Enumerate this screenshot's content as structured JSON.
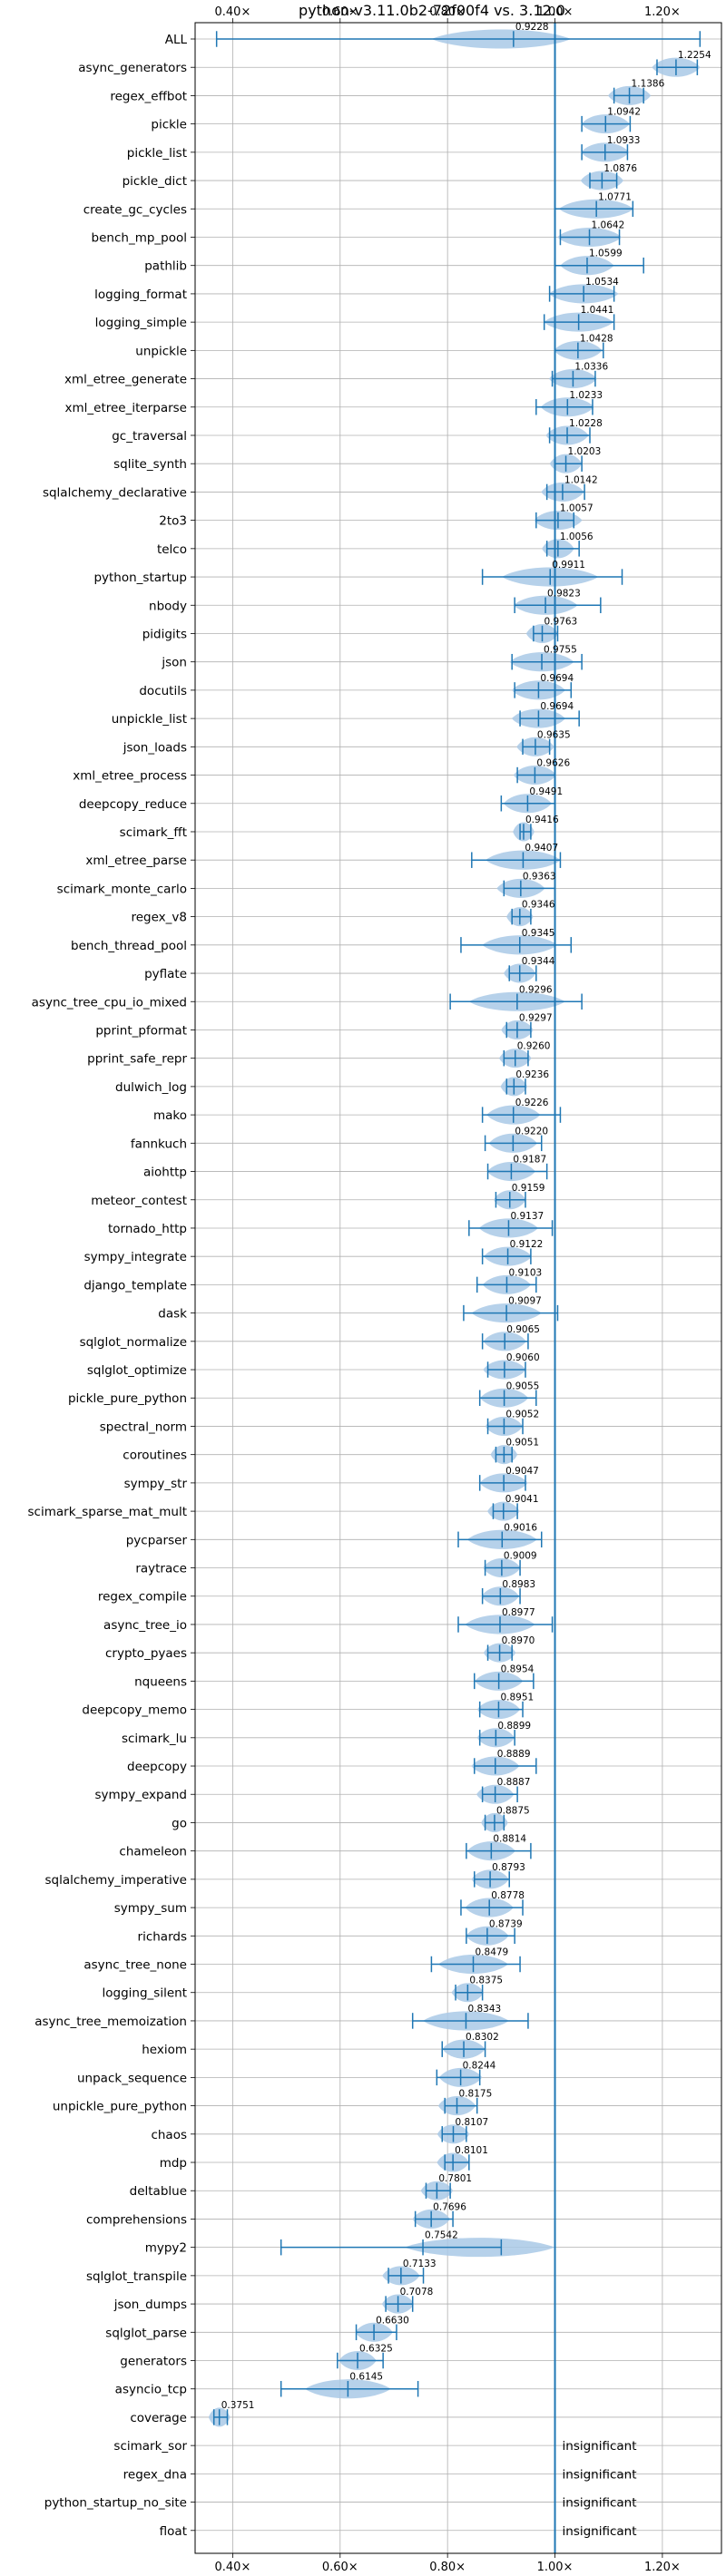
{
  "chart_data": {
    "type": "violin",
    "title": "python-v3.11.0b2-72f00f4 vs. 3.12.0",
    "xlabel": "",
    "ylabel": "",
    "xlim": [
      0.33,
      1.31
    ],
    "xticks": [
      0.4,
      0.6,
      0.8,
      1.0,
      1.2
    ],
    "xtick_labels": [
      "0.40×",
      "0.60×",
      "0.80×",
      "1.00×",
      "1.20×"
    ],
    "reference_line": 1.0,
    "grid": true,
    "colors": {
      "violin": "#a9c9e6",
      "whisker": "#1f77b4",
      "reference": "#1f77b4",
      "grid": "#b0b0b0"
    },
    "insignificant_text": "insignificant",
    "benchmarks": [
      {
        "name": "ALL",
        "label": "0.9228",
        "value": 0.9228,
        "min": 0.37,
        "max": 1.27,
        "width": 0.13,
        "vpeak": 0.9
      },
      {
        "name": "async_generators",
        "label": "1.2254",
        "value": 1.2254,
        "min": 1.19,
        "max": 1.265,
        "width": 0.045
      },
      {
        "name": "regex_effbot",
        "label": "1.1386",
        "value": 1.1386,
        "min": 1.11,
        "max": 1.165,
        "width": 0.04
      },
      {
        "name": "pickle",
        "label": "1.0942",
        "value": 1.0942,
        "min": 1.05,
        "max": 1.14,
        "width": 0.045
      },
      {
        "name": "pickle_list",
        "label": "1.0933",
        "value": 1.0933,
        "min": 1.05,
        "max": 1.135,
        "width": 0.045
      },
      {
        "name": "pickle_dict",
        "label": "1.0876",
        "value": 1.0876,
        "min": 1.065,
        "max": 1.115,
        "width": 0.04
      },
      {
        "name": "create_gc_cycles",
        "label": "1.0771",
        "value": 1.0771,
        "min": 1.0,
        "max": 1.145,
        "width": 0.07
      },
      {
        "name": "bench_mp_pool",
        "label": "1.0642",
        "value": 1.0642,
        "min": 1.01,
        "max": 1.12,
        "width": 0.06
      },
      {
        "name": "pathlib",
        "label": "1.0599",
        "value": 1.0599,
        "min": 1.0,
        "max": 1.165,
        "width": 0.05
      },
      {
        "name": "logging_format",
        "label": "1.0534",
        "value": 1.0534,
        "min": 0.99,
        "max": 1.11,
        "width": 0.065
      },
      {
        "name": "logging_simple",
        "label": "1.0441",
        "value": 1.0441,
        "min": 0.98,
        "max": 1.11,
        "width": 0.065
      },
      {
        "name": "unpickle",
        "label": "1.0428",
        "value": 1.0428,
        "min": 1.0,
        "max": 1.09,
        "width": 0.045
      },
      {
        "name": "xml_etree_generate",
        "label": "1.0336",
        "value": 1.0336,
        "min": 0.995,
        "max": 1.075,
        "width": 0.045
      },
      {
        "name": "xml_etree_iterparse",
        "label": "1.0233",
        "value": 1.0233,
        "min": 0.965,
        "max": 1.07,
        "width": 0.05
      },
      {
        "name": "gc_traversal",
        "label": "1.0228",
        "value": 1.0228,
        "min": 0.99,
        "max": 1.065,
        "width": 0.04
      },
      {
        "name": "sqlite_synth",
        "label": "1.0203",
        "value": 1.0203,
        "min": 1.0,
        "max": 1.05,
        "width": 0.03
      },
      {
        "name": "sqlalchemy_declarative",
        "label": "1.0142",
        "value": 1.0142,
        "min": 0.985,
        "max": 1.055,
        "width": 0.04
      },
      {
        "name": "2to3",
        "label": "1.0057",
        "value": 1.0057,
        "min": 0.965,
        "max": 1.035,
        "width": 0.045
      },
      {
        "name": "telco",
        "label": "1.0056",
        "value": 1.0056,
        "min": 0.985,
        "max": 1.045,
        "width": 0.03
      },
      {
        "name": "python_startup",
        "label": "0.9911",
        "value": 0.9911,
        "min": 0.865,
        "max": 1.125,
        "width": 0.09
      },
      {
        "name": "nbody",
        "label": "0.9823",
        "value": 0.9823,
        "min": 0.925,
        "max": 1.085,
        "width": 0.06
      },
      {
        "name": "pidigits",
        "label": "0.9763",
        "value": 0.9763,
        "min": 0.96,
        "max": 1.005,
        "width": 0.03
      },
      {
        "name": "json",
        "label": "0.9755",
        "value": 0.9755,
        "min": 0.92,
        "max": 1.05,
        "width": 0.06
      },
      {
        "name": "docutils",
        "label": "0.9694",
        "value": 0.9694,
        "min": 0.925,
        "max": 1.03,
        "width": 0.05
      },
      {
        "name": "unpickle_list",
        "label": "0.9694",
        "value": 0.9694,
        "min": 0.935,
        "max": 1.045,
        "width": 0.05
      },
      {
        "name": "json_loads",
        "label": "0.9635",
        "value": 0.9635,
        "min": 0.94,
        "max": 0.99,
        "width": 0.035
      },
      {
        "name": "xml_etree_process",
        "label": "0.9626",
        "value": 0.9626,
        "min": 0.93,
        "max": 1.0,
        "width": 0.04
      },
      {
        "name": "deepcopy_reduce",
        "label": "0.9491",
        "value": 0.9491,
        "min": 0.9,
        "max": 1.0,
        "width": 0.045
      },
      {
        "name": "scimark_fft",
        "label": "0.9416",
        "value": 0.9416,
        "min": 0.935,
        "max": 0.955,
        "width": 0.02
      },
      {
        "name": "xml_etree_parse",
        "label": "0.9407",
        "value": 0.9407,
        "min": 0.845,
        "max": 1.01,
        "width": 0.07
      },
      {
        "name": "scimark_monte_carlo",
        "label": "0.9363",
        "value": 0.9363,
        "min": 0.905,
        "max": 1.0,
        "width": 0.045
      },
      {
        "name": "regex_v8",
        "label": "0.9346",
        "value": 0.9346,
        "min": 0.92,
        "max": 0.955,
        "width": 0.025
      },
      {
        "name": "bench_thread_pool",
        "label": "0.9345",
        "value": 0.9345,
        "min": 0.825,
        "max": 1.03,
        "width": 0.07
      },
      {
        "name": "pyflate",
        "label": "0.9344",
        "value": 0.9344,
        "min": 0.915,
        "max": 0.965,
        "width": 0.03
      },
      {
        "name": "async_tree_cpu_io_mixed",
        "label": "0.9296",
        "value": 0.9296,
        "min": 0.805,
        "max": 1.05,
        "width": 0.09
      },
      {
        "name": "pprint_pformat",
        "label": "0.9297",
        "value": 0.9297,
        "min": 0.91,
        "max": 0.955,
        "width": 0.03
      },
      {
        "name": "pprint_safe_repr",
        "label": "0.9260",
        "value": 0.926,
        "min": 0.905,
        "max": 0.95,
        "width": 0.03
      },
      {
        "name": "dulwich_log",
        "label": "0.9236",
        "value": 0.9236,
        "min": 0.91,
        "max": 0.945,
        "width": 0.025
      },
      {
        "name": "mako",
        "label": "0.9226",
        "value": 0.9226,
        "min": 0.865,
        "max": 1.01,
        "width": 0.05
      },
      {
        "name": "fannkuch",
        "label": "0.9220",
        "value": 0.922,
        "min": 0.87,
        "max": 0.975,
        "width": 0.045
      },
      {
        "name": "aiohttp",
        "label": "0.9187",
        "value": 0.9187,
        "min": 0.875,
        "max": 0.985,
        "width": 0.045
      },
      {
        "name": "meteor_contest",
        "label": "0.9159",
        "value": 0.9159,
        "min": 0.89,
        "max": 0.945,
        "width": 0.03
      },
      {
        "name": "tornado_http",
        "label": "0.9137",
        "value": 0.9137,
        "min": 0.84,
        "max": 0.995,
        "width": 0.055
      },
      {
        "name": "sympy_integrate",
        "label": "0.9122",
        "value": 0.9122,
        "min": 0.865,
        "max": 0.955,
        "width": 0.045
      },
      {
        "name": "django_template",
        "label": "0.9103",
        "value": 0.9103,
        "min": 0.855,
        "max": 0.965,
        "width": 0.045
      },
      {
        "name": "dask",
        "label": "0.9097",
        "value": 0.9097,
        "min": 0.83,
        "max": 1.005,
        "width": 0.065
      },
      {
        "name": "sqlglot_normalize",
        "label": "0.9065",
        "value": 0.9065,
        "min": 0.865,
        "max": 0.95,
        "width": 0.04
      },
      {
        "name": "sqlglot_optimize",
        "label": "0.9060",
        "value": 0.906,
        "min": 0.875,
        "max": 0.945,
        "width": 0.04
      },
      {
        "name": "pickle_pure_python",
        "label": "0.9055",
        "value": 0.9055,
        "min": 0.86,
        "max": 0.965,
        "width": 0.045
      },
      {
        "name": "spectral_norm",
        "label": "0.9052",
        "value": 0.9052,
        "min": 0.875,
        "max": 0.94,
        "width": 0.035
      },
      {
        "name": "coroutines",
        "label": "0.9051",
        "value": 0.9051,
        "min": 0.89,
        "max": 0.92,
        "width": 0.025
      },
      {
        "name": "sympy_str",
        "label": "0.9047",
        "value": 0.9047,
        "min": 0.86,
        "max": 0.945,
        "width": 0.045
      },
      {
        "name": "scimark_sparse_mat_mult",
        "label": "0.9041",
        "value": 0.9041,
        "min": 0.885,
        "max": 0.93,
        "width": 0.03
      },
      {
        "name": "pycparser",
        "label": "0.9016",
        "value": 0.9016,
        "min": 0.82,
        "max": 0.975,
        "width": 0.065
      },
      {
        "name": "raytrace",
        "label": "0.9009",
        "value": 0.9009,
        "min": 0.87,
        "max": 0.935,
        "width": 0.035
      },
      {
        "name": "regex_compile",
        "label": "0.8983",
        "value": 0.8983,
        "min": 0.865,
        "max": 0.935,
        "width": 0.035
      },
      {
        "name": "async_tree_io",
        "label": "0.8977",
        "value": 0.8977,
        "min": 0.82,
        "max": 0.995,
        "width": 0.065
      },
      {
        "name": "crypto_pyaes",
        "label": "0.8970",
        "value": 0.897,
        "min": 0.875,
        "max": 0.92,
        "width": 0.03
      },
      {
        "name": "nqueens",
        "label": "0.8954",
        "value": 0.8954,
        "min": 0.85,
        "max": 0.96,
        "width": 0.045
      },
      {
        "name": "deepcopy_memo",
        "label": "0.8951",
        "value": 0.8951,
        "min": 0.86,
        "max": 0.94,
        "width": 0.04
      },
      {
        "name": "scimark_lu",
        "label": "0.8899",
        "value": 0.8899,
        "min": 0.86,
        "max": 0.925,
        "width": 0.035
      },
      {
        "name": "deepcopy",
        "label": "0.8889",
        "value": 0.8889,
        "min": 0.85,
        "max": 0.965,
        "width": 0.045
      },
      {
        "name": "sympy_expand",
        "label": "0.8887",
        "value": 0.8887,
        "min": 0.865,
        "max": 0.93,
        "width": 0.035
      },
      {
        "name": "go",
        "label": "0.8875",
        "value": 0.8875,
        "min": 0.87,
        "max": 0.905,
        "width": 0.025
      },
      {
        "name": "chameleon",
        "label": "0.8814",
        "value": 0.8814,
        "min": 0.835,
        "max": 0.955,
        "width": 0.045
      },
      {
        "name": "sqlalchemy_imperative",
        "label": "0.8793",
        "value": 0.8793,
        "min": 0.85,
        "max": 0.915,
        "width": 0.035
      },
      {
        "name": "sympy_sum",
        "label": "0.8778",
        "value": 0.8778,
        "min": 0.825,
        "max": 0.94,
        "width": 0.045
      },
      {
        "name": "richards",
        "label": "0.8739",
        "value": 0.8739,
        "min": 0.835,
        "max": 0.925,
        "width": 0.04
      },
      {
        "name": "async_tree_none",
        "label": "0.8479",
        "value": 0.8479,
        "min": 0.77,
        "max": 0.935,
        "width": 0.065
      },
      {
        "name": "logging_silent",
        "label": "0.8375",
        "value": 0.8375,
        "min": 0.815,
        "max": 0.865,
        "width": 0.03
      },
      {
        "name": "async_tree_memoization",
        "label": "0.8343",
        "value": 0.8343,
        "min": 0.735,
        "max": 0.95,
        "width": 0.08
      },
      {
        "name": "hexiom",
        "label": "0.8302",
        "value": 0.8302,
        "min": 0.79,
        "max": 0.87,
        "width": 0.04
      },
      {
        "name": "unpack_sequence",
        "label": "0.8244",
        "value": 0.8244,
        "min": 0.78,
        "max": 0.86,
        "width": 0.04
      },
      {
        "name": "unpickle_pure_python",
        "label": "0.8175",
        "value": 0.8175,
        "min": 0.795,
        "max": 0.855,
        "width": 0.035
      },
      {
        "name": "chaos",
        "label": "0.8107",
        "value": 0.8107,
        "min": 0.79,
        "max": 0.835,
        "width": 0.03
      },
      {
        "name": "mdp",
        "label": "0.8101",
        "value": 0.8101,
        "min": 0.795,
        "max": 0.84,
        "width": 0.03
      },
      {
        "name": "deltablue",
        "label": "0.7801",
        "value": 0.7801,
        "min": 0.76,
        "max": 0.805,
        "width": 0.03
      },
      {
        "name": "comprehensions",
        "label": "0.7696",
        "value": 0.7696,
        "min": 0.74,
        "max": 0.81,
        "width": 0.035
      },
      {
        "name": "mypy2",
        "label": "0.7542",
        "value": 0.7542,
        "min": 0.49,
        "max": 0.9,
        "width": 0.14,
        "vpeak": 0.86
      },
      {
        "name": "sqlglot_transpile",
        "label": "0.7133",
        "value": 0.7133,
        "min": 0.69,
        "max": 0.755,
        "width": 0.035
      },
      {
        "name": "json_dumps",
        "label": "0.7078",
        "value": 0.7078,
        "min": 0.685,
        "max": 0.735,
        "width": 0.03
      },
      {
        "name": "sqlglot_parse",
        "label": "0.6630",
        "value": 0.663,
        "min": 0.63,
        "max": 0.705,
        "width": 0.035
      },
      {
        "name": "generators",
        "label": "0.6325",
        "value": 0.6325,
        "min": 0.595,
        "max": 0.68,
        "width": 0.035
      },
      {
        "name": "asyncio_tcp",
        "label": "0.6145",
        "value": 0.6145,
        "min": 0.49,
        "max": 0.745,
        "width": 0.08
      },
      {
        "name": "coverage",
        "label": "0.3751",
        "value": 0.3751,
        "min": 0.365,
        "max": 0.39,
        "width": 0.02
      },
      {
        "name": "scimark_sor",
        "label": "insignificant",
        "insignificant": true
      },
      {
        "name": "regex_dna",
        "label": "insignificant",
        "insignificant": true
      },
      {
        "name": "python_startup_no_site",
        "label": "insignificant",
        "insignificant": true
      },
      {
        "name": "float",
        "label": "insignificant",
        "insignificant": true
      }
    ]
  }
}
